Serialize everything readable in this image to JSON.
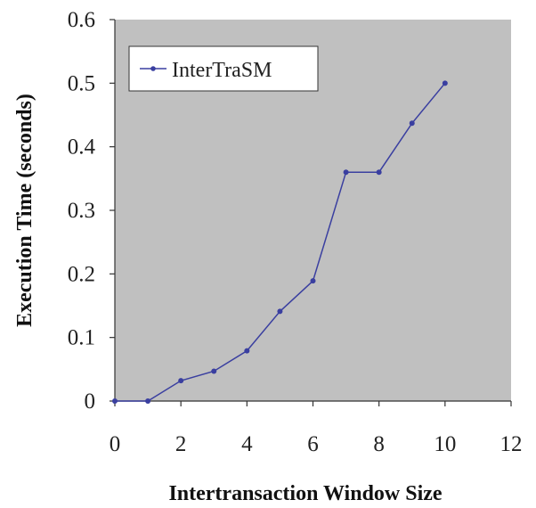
{
  "chart_data": {
    "type": "line",
    "title": "",
    "xlabel": "Intertransaction Window Size",
    "ylabel": "Execution Time (seconds)",
    "xlim": [
      0,
      12
    ],
    "ylim": [
      0,
      0.6
    ],
    "x_ticks": [
      0,
      2,
      4,
      6,
      8,
      10,
      12
    ],
    "y_ticks": [
      0,
      0.1,
      0.2,
      0.3,
      0.4,
      0.5,
      0.6
    ],
    "x_tick_labels": [
      "0",
      "2",
      "4",
      "6",
      "8",
      "10",
      "12"
    ],
    "y_tick_labels": [
      "0",
      "0.1",
      "0.2",
      "0.3",
      "0.4",
      "0.5",
      "0.6"
    ],
    "grid": false,
    "legend_position": "top-left",
    "plot_background": "#c0c0c0",
    "series": [
      {
        "name": "InterTraSM",
        "color": "#3a3fa0",
        "x": [
          0,
          1,
          2,
          3,
          4,
          5,
          6,
          7,
          8,
          9,
          10
        ],
        "values": [
          0,
          0,
          0.032,
          0.047,
          0.079,
          0.141,
          0.189,
          0.36,
          0.36,
          0.437,
          0.5
        ]
      }
    ]
  }
}
